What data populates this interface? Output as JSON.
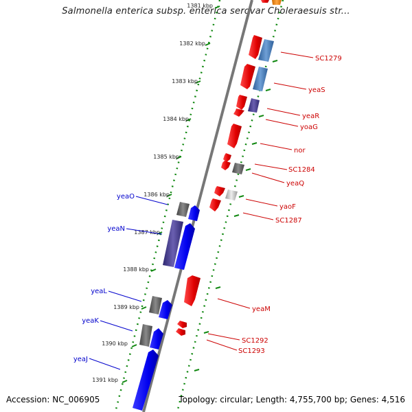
{
  "title": "Salmonella enterica subsp. enterica serovar Choleraesuis str...",
  "footer": {
    "accession": "Accession: NC_006905",
    "topology": "Topology: circular;",
    "length": "Length: 4,755,700 bp;",
    "genes": "Genes: 4,516"
  },
  "ticks": [
    "1381 kbp",
    "1382 kbp",
    "1383 kbp",
    "1384 kbp",
    "1385 kbp",
    "1386 kbp",
    "1387 kbp",
    "1388 kbp",
    "1389 kbp",
    "1390 kbp",
    "1391 kbp"
  ],
  "genes_reverse": [
    {
      "name": "yeaO",
      "color": "#0000cc"
    },
    {
      "name": "yeaN",
      "color": "#0000cc"
    },
    {
      "name": "yeaL",
      "color": "#0000cc"
    },
    {
      "name": "yeaK",
      "color": "#0000cc"
    },
    {
      "name": "yeaJ",
      "color": "#0000cc"
    }
  ],
  "genes_forward": [
    {
      "name": "SC1279",
      "color": "#cc0000"
    },
    {
      "name": "yeaS",
      "color": "#cc0000"
    },
    {
      "name": "yeaR",
      "color": "#cc0000"
    },
    {
      "name": "yoaG",
      "color": "#cc0000"
    },
    {
      "name": "nor",
      "color": "#cc0000"
    },
    {
      "name": "SC1284",
      "color": "#cc0000"
    },
    {
      "name": "yeaQ",
      "color": "#cc0000"
    },
    {
      "name": "yaoF",
      "color": "#cc0000"
    },
    {
      "name": "SC1287",
      "color": "#cc0000"
    },
    {
      "name": "yeaM",
      "color": "#cc0000"
    },
    {
      "name": "SC1292",
      "color": "#cc0000"
    },
    {
      "name": "SC1293",
      "color": "#cc0000"
    }
  ],
  "colors": {
    "forward_cds": "#ee0000",
    "reverse_cds": "#0000ee",
    "orf_blue": "#4477bb",
    "orf_purple": "#4a3f8f",
    "orf_gray": "#666666",
    "gc_dots": "#118811",
    "backbone": "#777777"
  }
}
